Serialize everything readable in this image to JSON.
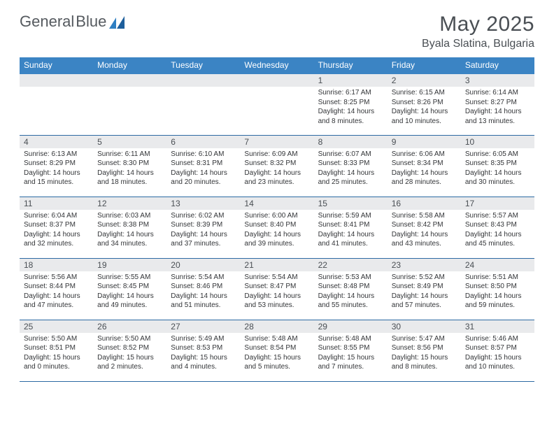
{
  "brand": {
    "word1": "General",
    "word2": "Blue"
  },
  "title": "May 2025",
  "subtitle": "Byala Slatina, Bulgaria",
  "header_bg": "#3b84c4",
  "header_text": "#ffffff",
  "daynum_bg": "#e9eaec",
  "rule_color": "#2c6aa3",
  "weekdays": [
    "Sunday",
    "Monday",
    "Tuesday",
    "Wednesday",
    "Thursday",
    "Friday",
    "Saturday"
  ],
  "weeks": [
    [
      null,
      null,
      null,
      null,
      {
        "n": "1",
        "sr": "Sunrise: 6:17 AM",
        "ss": "Sunset: 8:25 PM",
        "dl1": "Daylight: 14 hours",
        "dl2": "and 8 minutes."
      },
      {
        "n": "2",
        "sr": "Sunrise: 6:15 AM",
        "ss": "Sunset: 8:26 PM",
        "dl1": "Daylight: 14 hours",
        "dl2": "and 10 minutes."
      },
      {
        "n": "3",
        "sr": "Sunrise: 6:14 AM",
        "ss": "Sunset: 8:27 PM",
        "dl1": "Daylight: 14 hours",
        "dl2": "and 13 minutes."
      }
    ],
    [
      {
        "n": "4",
        "sr": "Sunrise: 6:13 AM",
        "ss": "Sunset: 8:29 PM",
        "dl1": "Daylight: 14 hours",
        "dl2": "and 15 minutes."
      },
      {
        "n": "5",
        "sr": "Sunrise: 6:11 AM",
        "ss": "Sunset: 8:30 PM",
        "dl1": "Daylight: 14 hours",
        "dl2": "and 18 minutes."
      },
      {
        "n": "6",
        "sr": "Sunrise: 6:10 AM",
        "ss": "Sunset: 8:31 PM",
        "dl1": "Daylight: 14 hours",
        "dl2": "and 20 minutes."
      },
      {
        "n": "7",
        "sr": "Sunrise: 6:09 AM",
        "ss": "Sunset: 8:32 PM",
        "dl1": "Daylight: 14 hours",
        "dl2": "and 23 minutes."
      },
      {
        "n": "8",
        "sr": "Sunrise: 6:07 AM",
        "ss": "Sunset: 8:33 PM",
        "dl1": "Daylight: 14 hours",
        "dl2": "and 25 minutes."
      },
      {
        "n": "9",
        "sr": "Sunrise: 6:06 AM",
        "ss": "Sunset: 8:34 PM",
        "dl1": "Daylight: 14 hours",
        "dl2": "and 28 minutes."
      },
      {
        "n": "10",
        "sr": "Sunrise: 6:05 AM",
        "ss": "Sunset: 8:35 PM",
        "dl1": "Daylight: 14 hours",
        "dl2": "and 30 minutes."
      }
    ],
    [
      {
        "n": "11",
        "sr": "Sunrise: 6:04 AM",
        "ss": "Sunset: 8:37 PM",
        "dl1": "Daylight: 14 hours",
        "dl2": "and 32 minutes."
      },
      {
        "n": "12",
        "sr": "Sunrise: 6:03 AM",
        "ss": "Sunset: 8:38 PM",
        "dl1": "Daylight: 14 hours",
        "dl2": "and 34 minutes."
      },
      {
        "n": "13",
        "sr": "Sunrise: 6:02 AM",
        "ss": "Sunset: 8:39 PM",
        "dl1": "Daylight: 14 hours",
        "dl2": "and 37 minutes."
      },
      {
        "n": "14",
        "sr": "Sunrise: 6:00 AM",
        "ss": "Sunset: 8:40 PM",
        "dl1": "Daylight: 14 hours",
        "dl2": "and 39 minutes."
      },
      {
        "n": "15",
        "sr": "Sunrise: 5:59 AM",
        "ss": "Sunset: 8:41 PM",
        "dl1": "Daylight: 14 hours",
        "dl2": "and 41 minutes."
      },
      {
        "n": "16",
        "sr": "Sunrise: 5:58 AM",
        "ss": "Sunset: 8:42 PM",
        "dl1": "Daylight: 14 hours",
        "dl2": "and 43 minutes."
      },
      {
        "n": "17",
        "sr": "Sunrise: 5:57 AM",
        "ss": "Sunset: 8:43 PM",
        "dl1": "Daylight: 14 hours",
        "dl2": "and 45 minutes."
      }
    ],
    [
      {
        "n": "18",
        "sr": "Sunrise: 5:56 AM",
        "ss": "Sunset: 8:44 PM",
        "dl1": "Daylight: 14 hours",
        "dl2": "and 47 minutes."
      },
      {
        "n": "19",
        "sr": "Sunrise: 5:55 AM",
        "ss": "Sunset: 8:45 PM",
        "dl1": "Daylight: 14 hours",
        "dl2": "and 49 minutes."
      },
      {
        "n": "20",
        "sr": "Sunrise: 5:54 AM",
        "ss": "Sunset: 8:46 PM",
        "dl1": "Daylight: 14 hours",
        "dl2": "and 51 minutes."
      },
      {
        "n": "21",
        "sr": "Sunrise: 5:54 AM",
        "ss": "Sunset: 8:47 PM",
        "dl1": "Daylight: 14 hours",
        "dl2": "and 53 minutes."
      },
      {
        "n": "22",
        "sr": "Sunrise: 5:53 AM",
        "ss": "Sunset: 8:48 PM",
        "dl1": "Daylight: 14 hours",
        "dl2": "and 55 minutes."
      },
      {
        "n": "23",
        "sr": "Sunrise: 5:52 AM",
        "ss": "Sunset: 8:49 PM",
        "dl1": "Daylight: 14 hours",
        "dl2": "and 57 minutes."
      },
      {
        "n": "24",
        "sr": "Sunrise: 5:51 AM",
        "ss": "Sunset: 8:50 PM",
        "dl1": "Daylight: 14 hours",
        "dl2": "and 59 minutes."
      }
    ],
    [
      {
        "n": "25",
        "sr": "Sunrise: 5:50 AM",
        "ss": "Sunset: 8:51 PM",
        "dl1": "Daylight: 15 hours",
        "dl2": "and 0 minutes."
      },
      {
        "n": "26",
        "sr": "Sunrise: 5:50 AM",
        "ss": "Sunset: 8:52 PM",
        "dl1": "Daylight: 15 hours",
        "dl2": "and 2 minutes."
      },
      {
        "n": "27",
        "sr": "Sunrise: 5:49 AM",
        "ss": "Sunset: 8:53 PM",
        "dl1": "Daylight: 15 hours",
        "dl2": "and 4 minutes."
      },
      {
        "n": "28",
        "sr": "Sunrise: 5:48 AM",
        "ss": "Sunset: 8:54 PM",
        "dl1": "Daylight: 15 hours",
        "dl2": "and 5 minutes."
      },
      {
        "n": "29",
        "sr": "Sunrise: 5:48 AM",
        "ss": "Sunset: 8:55 PM",
        "dl1": "Daylight: 15 hours",
        "dl2": "and 7 minutes."
      },
      {
        "n": "30",
        "sr": "Sunrise: 5:47 AM",
        "ss": "Sunset: 8:56 PM",
        "dl1": "Daylight: 15 hours",
        "dl2": "and 8 minutes."
      },
      {
        "n": "31",
        "sr": "Sunrise: 5:46 AM",
        "ss": "Sunset: 8:57 PM",
        "dl1": "Daylight: 15 hours",
        "dl2": "and 10 minutes."
      }
    ]
  ]
}
